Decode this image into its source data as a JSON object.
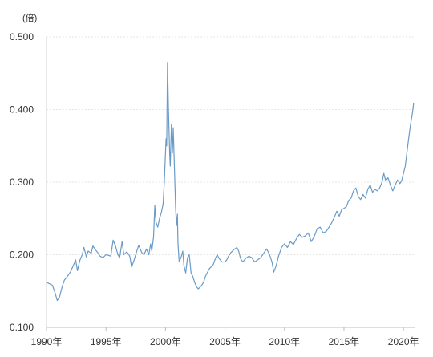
{
  "chart_data": {
    "type": "line",
    "unit_label": "(倍)",
    "ylim": [
      0.1,
      0.5
    ],
    "xlim": [
      1990.0,
      2021.0
    ],
    "y_ticks": [
      {
        "value": 0.5,
        "label": "0.500"
      },
      {
        "value": 0.4,
        "label": "0.400"
      },
      {
        "value": 0.3,
        "label": "0.300"
      },
      {
        "value": 0.2,
        "label": "0.200"
      },
      {
        "value": 0.1,
        "label": "0.100"
      }
    ],
    "x_ticks": [
      {
        "value": 1990,
        "label": "1990年"
      },
      {
        "value": 1995,
        "label": "1995年"
      },
      {
        "value": 2000,
        "label": "2000年"
      },
      {
        "value": 2005,
        "label": "2005年"
      },
      {
        "value": 2010,
        "label": "2010年"
      },
      {
        "value": 2015,
        "label": "2015年"
      },
      {
        "value": 2020,
        "label": "2020年"
      }
    ],
    "grid": true,
    "line_color": "#6a9bc7",
    "series": [
      {
        "values": [
          [
            1990.0,
            0.162
          ],
          [
            1990.25,
            0.16
          ],
          [
            1990.5,
            0.158
          ],
          [
            1990.75,
            0.146
          ],
          [
            1990.9,
            0.137
          ],
          [
            1991.1,
            0.142
          ],
          [
            1991.3,
            0.155
          ],
          [
            1991.5,
            0.165
          ],
          [
            1991.75,
            0.17
          ],
          [
            1992.0,
            0.176
          ],
          [
            1992.25,
            0.185
          ],
          [
            1992.45,
            0.193
          ],
          [
            1992.6,
            0.178
          ],
          [
            1992.8,
            0.192
          ],
          [
            1993.0,
            0.2
          ],
          [
            1993.15,
            0.21
          ],
          [
            1993.35,
            0.197
          ],
          [
            1993.5,
            0.205
          ],
          [
            1993.75,
            0.202
          ],
          [
            1993.9,
            0.212
          ],
          [
            1994.1,
            0.207
          ],
          [
            1994.3,
            0.203
          ],
          [
            1994.5,
            0.198
          ],
          [
            1994.75,
            0.196
          ],
          [
            1995.0,
            0.2
          ],
          [
            1995.25,
            0.199
          ],
          [
            1995.4,
            0.198
          ],
          [
            1995.6,
            0.22
          ],
          [
            1995.8,
            0.212
          ],
          [
            1996.0,
            0.2
          ],
          [
            1996.15,
            0.196
          ],
          [
            1996.35,
            0.218
          ],
          [
            1996.5,
            0.2
          ],
          [
            1996.75,
            0.204
          ],
          [
            1997.0,
            0.198
          ],
          [
            1997.15,
            0.183
          ],
          [
            1997.35,
            0.192
          ],
          [
            1997.55,
            0.203
          ],
          [
            1997.75,
            0.213
          ],
          [
            1998.0,
            0.203
          ],
          [
            1998.2,
            0.2
          ],
          [
            1998.4,
            0.208
          ],
          [
            1998.6,
            0.2
          ],
          [
            1998.75,
            0.215
          ],
          [
            1998.85,
            0.205
          ],
          [
            1999.0,
            0.225
          ],
          [
            1999.1,
            0.268
          ],
          [
            1999.2,
            0.245
          ],
          [
            1999.35,
            0.238
          ],
          [
            1999.5,
            0.25
          ],
          [
            1999.65,
            0.258
          ],
          [
            1999.8,
            0.27
          ],
          [
            1999.9,
            0.3
          ],
          [
            2000.0,
            0.34
          ],
          [
            2000.05,
            0.36
          ],
          [
            2000.1,
            0.35
          ],
          [
            2000.17,
            0.465
          ],
          [
            2000.25,
            0.4
          ],
          [
            2000.35,
            0.34
          ],
          [
            2000.4,
            0.322
          ],
          [
            2000.5,
            0.38
          ],
          [
            2000.58,
            0.34
          ],
          [
            2000.65,
            0.375
          ],
          [
            2000.75,
            0.32
          ],
          [
            2000.85,
            0.265
          ],
          [
            2000.92,
            0.24
          ],
          [
            2001.0,
            0.256
          ],
          [
            2001.05,
            0.215
          ],
          [
            2001.15,
            0.19
          ],
          [
            2001.3,
            0.196
          ],
          [
            2001.45,
            0.205
          ],
          [
            2001.55,
            0.185
          ],
          [
            2001.7,
            0.175
          ],
          [
            2001.85,
            0.196
          ],
          [
            2002.0,
            0.2
          ],
          [
            2002.15,
            0.175
          ],
          [
            2002.3,
            0.17
          ],
          [
            2002.45,
            0.162
          ],
          [
            2002.6,
            0.156
          ],
          [
            2002.75,
            0.153
          ],
          [
            2003.0,
            0.157
          ],
          [
            2003.2,
            0.162
          ],
          [
            2003.35,
            0.17
          ],
          [
            2003.5,
            0.175
          ],
          [
            2003.7,
            0.181
          ],
          [
            2004.0,
            0.186
          ],
          [
            2004.2,
            0.195
          ],
          [
            2004.35,
            0.2
          ],
          [
            2004.5,
            0.195
          ],
          [
            2004.75,
            0.19
          ],
          [
            2005.0,
            0.19
          ],
          [
            2005.15,
            0.193
          ],
          [
            2005.3,
            0.198
          ],
          [
            2005.5,
            0.203
          ],
          [
            2005.75,
            0.207
          ],
          [
            2006.0,
            0.21
          ],
          [
            2006.15,
            0.205
          ],
          [
            2006.3,
            0.195
          ],
          [
            2006.5,
            0.19
          ],
          [
            2006.75,
            0.195
          ],
          [
            2007.0,
            0.198
          ],
          [
            2007.25,
            0.196
          ],
          [
            2007.5,
            0.19
          ],
          [
            2007.75,
            0.193
          ],
          [
            2008.0,
            0.196
          ],
          [
            2008.25,
            0.202
          ],
          [
            2008.5,
            0.208
          ],
          [
            2008.75,
            0.2
          ],
          [
            2008.95,
            0.19
          ],
          [
            2009.1,
            0.176
          ],
          [
            2009.3,
            0.185
          ],
          [
            2009.5,
            0.198
          ],
          [
            2009.75,
            0.21
          ],
          [
            2010.0,
            0.215
          ],
          [
            2010.25,
            0.21
          ],
          [
            2010.5,
            0.218
          ],
          [
            2010.75,
            0.214
          ],
          [
            2011.0,
            0.222
          ],
          [
            2011.25,
            0.228
          ],
          [
            2011.5,
            0.224
          ],
          [
            2011.75,
            0.226
          ],
          [
            2012.0,
            0.23
          ],
          [
            2012.25,
            0.218
          ],
          [
            2012.5,
            0.225
          ],
          [
            2012.75,
            0.236
          ],
          [
            2013.0,
            0.238
          ],
          [
            2013.25,
            0.23
          ],
          [
            2013.5,
            0.232
          ],
          [
            2013.75,
            0.238
          ],
          [
            2014.0,
            0.245
          ],
          [
            2014.2,
            0.252
          ],
          [
            2014.4,
            0.26
          ],
          [
            2014.6,
            0.253
          ],
          [
            2014.8,
            0.262
          ],
          [
            2015.0,
            0.264
          ],
          [
            2015.2,
            0.266
          ],
          [
            2015.4,
            0.275
          ],
          [
            2015.6,
            0.278
          ],
          [
            2015.8,
            0.288
          ],
          [
            2016.0,
            0.292
          ],
          [
            2016.2,
            0.28
          ],
          [
            2016.4,
            0.276
          ],
          [
            2016.6,
            0.283
          ],
          [
            2016.8,
            0.278
          ],
          [
            2017.0,
            0.29
          ],
          [
            2017.2,
            0.296
          ],
          [
            2017.4,
            0.286
          ],
          [
            2017.6,
            0.29
          ],
          [
            2017.8,
            0.288
          ],
          [
            2018.0,
            0.292
          ],
          [
            2018.2,
            0.3
          ],
          [
            2018.35,
            0.312
          ],
          [
            2018.5,
            0.302
          ],
          [
            2018.7,
            0.306
          ],
          [
            2018.9,
            0.296
          ],
          [
            2019.1,
            0.288
          ],
          [
            2019.3,
            0.296
          ],
          [
            2019.5,
            0.303
          ],
          [
            2019.7,
            0.298
          ],
          [
            2019.85,
            0.302
          ],
          [
            2020.0,
            0.312
          ],
          [
            2020.15,
            0.322
          ],
          [
            2020.3,
            0.342
          ],
          [
            2020.45,
            0.362
          ],
          [
            2020.6,
            0.38
          ],
          [
            2020.75,
            0.395
          ],
          [
            2020.85,
            0.408
          ]
        ]
      }
    ]
  }
}
